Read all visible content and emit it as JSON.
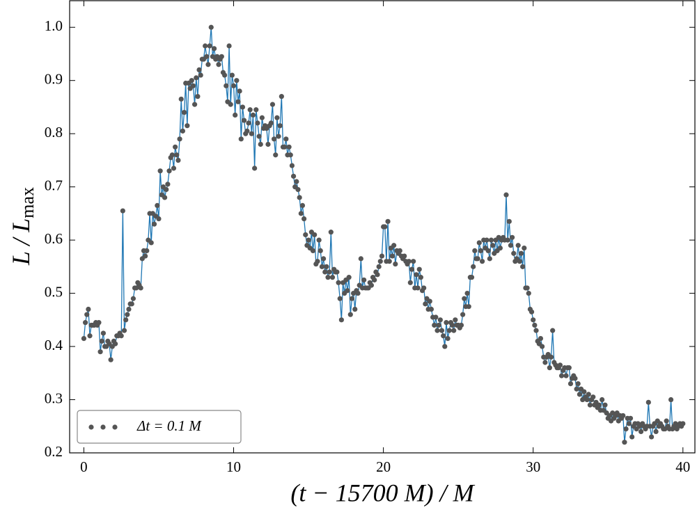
{
  "chart_data": {
    "type": "line",
    "xlabel": "(t − 15700 M) / M",
    "ylabel": [
      "L / L",
      "max"
    ],
    "xlim": [
      -0.95,
      40.8
    ],
    "ylim": [
      0.2,
      1.05
    ],
    "xticks": [
      0,
      10,
      20,
      30,
      40
    ],
    "yticks": [
      0.2,
      0.3,
      0.4,
      0.5,
      0.6,
      0.7,
      0.8,
      0.9,
      {
        "value": 1,
        "label": "1.0"
      }
    ],
    "legend": "lower left",
    "x": [
      0,
      0.1,
      0.2,
      0.3,
      0.4,
      0.5,
      0.6,
      0.7,
      0.8,
      0.9,
      1,
      1.1,
      1.2,
      1.3,
      1.4,
      1.5,
      1.6,
      1.7,
      1.8,
      1.9,
      2,
      2.1,
      2.2,
      2.3,
      2.4,
      2.5,
      2.6,
      2.7,
      2.8,
      2.9,
      3,
      3.1,
      3.2,
      3.3,
      3.4,
      3.5,
      3.6,
      3.7,
      3.8,
      3.9,
      4,
      4.1,
      4.2,
      4.3,
      4.4,
      4.5,
      4.6,
      4.7,
      4.8,
      4.9,
      5,
      5.1,
      5.2,
      5.3,
      5.4,
      5.5,
      5.6,
      5.7,
      5.8,
      5.9,
      6,
      6.1,
      6.2,
      6.3,
      6.4,
      6.5,
      6.6,
      6.7,
      6.8,
      6.9,
      7,
      7.1,
      7.2,
      7.3,
      7.4,
      7.5,
      7.6,
      7.7,
      7.8,
      7.9,
      8,
      8.1,
      8.2,
      8.3,
      8.4,
      8.5,
      8.6,
      8.7,
      8.8,
      8.9,
      9,
      9.1,
      9.2,
      9.3,
      9.4,
      9.5,
      9.6,
      9.7,
      9.8,
      9.9,
      10,
      10.1,
      10.2,
      10.3,
      10.4,
      10.5,
      10.6,
      10.7,
      10.8,
      10.9,
      11,
      11.1,
      11.2,
      11.3,
      11.4,
      11.5,
      11.6,
      11.7,
      11.8,
      11.9,
      12,
      12.1,
      12.2,
      12.3,
      12.4,
      12.5,
      12.6,
      12.7,
      12.8,
      12.9,
      13,
      13.1,
      13.2,
      13.3,
      13.4,
      13.5,
      13.6,
      13.7,
      13.8,
      13.9,
      14,
      14.1,
      14.2,
      14.3,
      14.4,
      14.5,
      14.6,
      14.7,
      14.8,
      14.9,
      15,
      15.1,
      15.2,
      15.3,
      15.4,
      15.5,
      15.6,
      15.7,
      15.8,
      15.9,
      16,
      16.1,
      16.2,
      16.3,
      16.4,
      16.5,
      16.6,
      16.7,
      16.8,
      16.9,
      17,
      17.1,
      17.2,
      17.3,
      17.4,
      17.5,
      17.6,
      17.7,
      17.8,
      17.9,
      18,
      18.1,
      18.2,
      18.3,
      18.4,
      18.5,
      18.6,
      18.7,
      18.8,
      18.9,
      19,
      19.1,
      19.2,
      19.3,
      19.4,
      19.5,
      19.6,
      19.7,
      19.8,
      19.9,
      20,
      20.1,
      20.2,
      20.3,
      20.4,
      20.5,
      20.6,
      20.7,
      20.8,
      20.9,
      21,
      21.1,
      21.2,
      21.3,
      21.4,
      21.5,
      21.6,
      21.7,
      21.8,
      21.9,
      22,
      22.1,
      22.2,
      22.3,
      22.4,
      22.5,
      22.6,
      22.7,
      22.8,
      22.9,
      23,
      23.1,
      23.2,
      23.3,
      23.4,
      23.5,
      23.6,
      23.7,
      23.8,
      23.9,
      24,
      24.1,
      24.2,
      24.3,
      24.4,
      24.5,
      24.6,
      24.7,
      24.8,
      24.9,
      25,
      25.1,
      25.2,
      25.3,
      25.4,
      25.5,
      25.6,
      25.7,
      25.8,
      25.9,
      26,
      26.1,
      26.2,
      26.3,
      26.4,
      26.5,
      26.6,
      26.7,
      26.8,
      26.9,
      27,
      27.1,
      27.2,
      27.3,
      27.4,
      27.5,
      27.6,
      27.7,
      27.8,
      27.9,
      28,
      28.1,
      28.2,
      28.3,
      28.4,
      28.5,
      28.6,
      28.7,
      28.8,
      28.9,
      29,
      29.1,
      29.2,
      29.3,
      29.4,
      29.5,
      29.6,
      29.7,
      29.8,
      29.9,
      30,
      30.1,
      30.2,
      30.3,
      30.4,
      30.5,
      30.6,
      30.7,
      30.8,
      30.9,
      31,
      31.1,
      31.2,
      31.3,
      31.4,
      31.5,
      31.6,
      31.7,
      31.8,
      31.9,
      32,
      32.1,
      32.2,
      32.3,
      32.4,
      32.5,
      32.6,
      32.7,
      32.8,
      32.9,
      33,
      33.1,
      33.2,
      33.3,
      33.4,
      33.5,
      33.6,
      33.7,
      33.8,
      33.9,
      34,
      34.1,
      34.2,
      34.3,
      34.4,
      34.5,
      34.6,
      34.7,
      34.8,
      34.9,
      35,
      35.1,
      35.2,
      35.3,
      35.4,
      35.5,
      35.6,
      35.7,
      35.8,
      35.9,
      36,
      36.1,
      36.2,
      36.3,
      36.4,
      36.5,
      36.6,
      36.7,
      36.8,
      36.9,
      37,
      37.1,
      37.2,
      37.3,
      37.4,
      37.5,
      37.6,
      37.7,
      37.8,
      37.9,
      38,
      38.1,
      38.2,
      38.3,
      38.4,
      38.5,
      38.6,
      38.7,
      38.8,
      38.9,
      39,
      39.1,
      39.2,
      39.3,
      39.4,
      39.5,
      39.6,
      39.7,
      39.8,
      39.9,
      40
    ],
    "series": [
      {
        "name": "Δt = 0.1 M",
        "color": "#555555",
        "line_color": "#1f77b4",
        "values": [
          0.415,
          0.445,
          0.46,
          0.47,
          0.42,
          0.44,
          0.44,
          0.44,
          0.445,
          0.44,
          0.445,
          0.39,
          0.41,
          0.425,
          0.4,
          0.4,
          0.41,
          0.405,
          0.375,
          0.4,
          0.41,
          0.405,
          0.42,
          0.42,
          0.425,
          0.42,
          0.655,
          0.43,
          0.45,
          0.46,
          0.47,
          0.48,
          0.48,
          0.49,
          0.51,
          0.51,
          0.52,
          0.515,
          0.51,
          0.565,
          0.58,
          0.57,
          0.58,
          0.6,
          0.65,
          0.595,
          0.65,
          0.63,
          0.645,
          0.665,
          0.64,
          0.73,
          0.685,
          0.7,
          0.68,
          0.695,
          0.705,
          0.73,
          0.755,
          0.76,
          0.735,
          0.775,
          0.76,
          0.75,
          0.79,
          0.865,
          0.805,
          0.84,
          0.895,
          0.815,
          0.895,
          0.885,
          0.9,
          0.89,
          0.855,
          0.905,
          0.87,
          0.92,
          0.91,
          0.94,
          0.94,
          0.965,
          0.945,
          0.93,
          0.965,
          1.0,
          0.945,
          0.96,
          0.94,
          0.945,
          0.93,
          0.94,
          0.945,
          0.915,
          0.91,
          0.89,
          0.86,
          0.965,
          0.855,
          0.91,
          0.89,
          0.835,
          0.9,
          0.86,
          0.88,
          0.79,
          0.85,
          0.825,
          0.8,
          0.805,
          0.82,
          0.845,
          0.8,
          0.835,
          0.735,
          0.845,
          0.82,
          0.795,
          0.78,
          0.83,
          0.81,
          0.815,
          0.81,
          0.78,
          0.815,
          0.82,
          0.855,
          0.79,
          0.76,
          0.83,
          0.795,
          0.815,
          0.87,
          0.775,
          0.775,
          0.79,
          0.76,
          0.775,
          0.76,
          0.74,
          0.72,
          0.7,
          0.71,
          0.695,
          0.68,
          0.65,
          0.665,
          0.64,
          0.61,
          0.59,
          0.6,
          0.585,
          0.615,
          0.58,
          0.61,
          0.555,
          0.56,
          0.6,
          0.58,
          0.55,
          0.565,
          0.54,
          0.55,
          0.53,
          0.54,
          0.615,
          0.53,
          0.545,
          0.54,
          0.54,
          0.52,
          0.49,
          0.45,
          0.52,
          0.5,
          0.525,
          0.505,
          0.53,
          0.46,
          0.49,
          0.5,
          0.47,
          0.505,
          0.5,
          0.515,
          0.565,
          0.51,
          0.525,
          0.51,
          0.51,
          0.51,
          0.52,
          0.515,
          0.53,
          0.525,
          0.54,
          0.535,
          0.55,
          0.56,
          0.57,
          0.625,
          0.625,
          0.56,
          0.635,
          0.56,
          0.585,
          0.57,
          0.59,
          0.555,
          0.58,
          0.575,
          0.58,
          0.57,
          0.565,
          0.57,
          0.56,
          0.555,
          0.56,
          0.52,
          0.545,
          0.56,
          0.51,
          0.535,
          0.51,
          0.545,
          0.53,
          0.505,
          0.51,
          0.48,
          0.49,
          0.47,
          0.485,
          0.47,
          0.455,
          0.44,
          0.455,
          0.43,
          0.44,
          0.45,
          0.43,
          0.42,
          0.4,
          0.445,
          0.415,
          0.43,
          0.445,
          0.44,
          0.43,
          0.45,
          0.44,
          0.44,
          0.435,
          0.44,
          0.46,
          0.49,
          0.475,
          0.5,
          0.475,
          0.53,
          0.53,
          0.55,
          0.58,
          0.565,
          0.565,
          0.595,
          0.58,
          0.56,
          0.6,
          0.585,
          0.6,
          0.58,
          0.565,
          0.6,
          0.59,
          0.575,
          0.6,
          0.58,
          0.605,
          0.585,
          0.6,
          0.605,
          0.6,
          0.685,
          0.6,
          0.635,
          0.59,
          0.605,
          0.575,
          0.56,
          0.565,
          0.59,
          0.56,
          0.575,
          0.55,
          0.585,
          0.51,
          0.51,
          0.5,
          0.47,
          0.465,
          0.45,
          0.44,
          0.43,
          0.41,
          0.405,
          0.415,
          0.4,
          0.38,
          0.37,
          0.38,
          0.385,
          0.36,
          0.38,
          0.43,
          0.37,
          0.365,
          0.36,
          0.36,
          0.365,
          0.345,
          0.355,
          0.36,
          0.345,
          0.36,
          0.36,
          0.33,
          0.34,
          0.345,
          0.34,
          0.32,
          0.33,
          0.31,
          0.32,
          0.3,
          0.315,
          0.305,
          0.3,
          0.31,
          0.29,
          0.3,
          0.305,
          0.29,
          0.295,
          0.285,
          0.29,
          0.28,
          0.3,
          0.28,
          0.29,
          0.275,
          0.265,
          0.27,
          0.26,
          0.275,
          0.265,
          0.27,
          0.275,
          0.26,
          0.27,
          0.265,
          0.27,
          0.22,
          0.245,
          0.265,
          0.255,
          0.265,
          0.23,
          0.25,
          0.255,
          0.245,
          0.255,
          0.25,
          0.24,
          0.255,
          0.25,
          0.245,
          0.25,
          0.295,
          0.25,
          0.23,
          0.25,
          0.255,
          0.24,
          0.26,
          0.25,
          0.255,
          0.25,
          0.245,
          0.245,
          0.26,
          0.25,
          0.245,
          0.3,
          0.245,
          0.25,
          0.255,
          0.245,
          0.25,
          0.255,
          0.25,
          0.255
        ]
      }
    ]
  }
}
